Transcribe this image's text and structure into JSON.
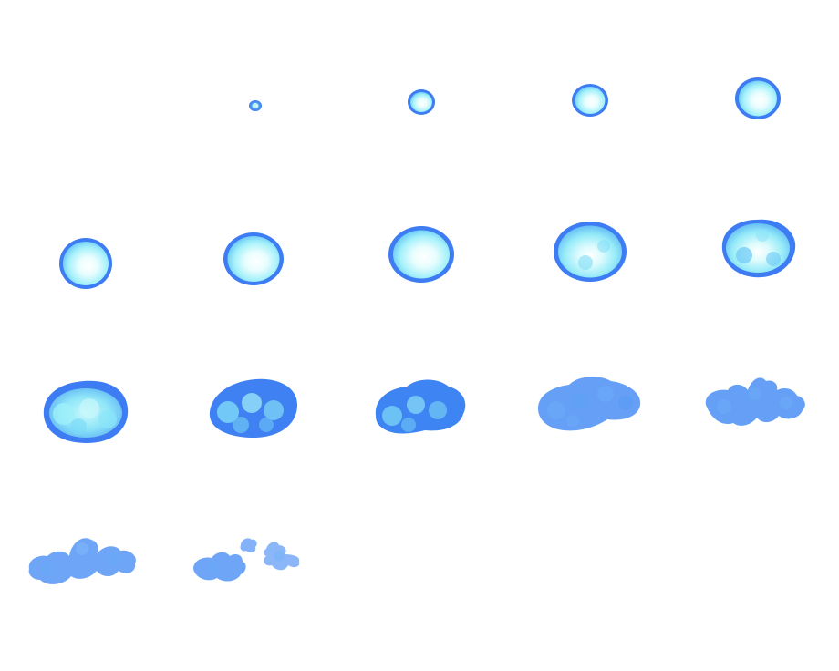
{
  "sprite_sheet": {
    "columns": 5,
    "rows": 4,
    "frame_count": 17,
    "palette": {
      "rim": "#3d7cf2",
      "body": "#5fb6f5",
      "glow": "#b8f6fb",
      "core": "#ffffff",
      "smoke": "#4a8ef5"
    },
    "frames": [
      {
        "index": 1,
        "phase": "empty"
      },
      {
        "index": 2,
        "phase": "grow"
      },
      {
        "index": 3,
        "phase": "grow"
      },
      {
        "index": 4,
        "phase": "grow"
      },
      {
        "index": 5,
        "phase": "grow"
      },
      {
        "index": 6,
        "phase": "grow"
      },
      {
        "index": 7,
        "phase": "grow"
      },
      {
        "index": 8,
        "phase": "grow"
      },
      {
        "index": 9,
        "phase": "grow"
      },
      {
        "index": 10,
        "phase": "grow"
      },
      {
        "index": 11,
        "phase": "break"
      },
      {
        "index": 12,
        "phase": "break"
      },
      {
        "index": 13,
        "phase": "break"
      },
      {
        "index": 14,
        "phase": "break"
      },
      {
        "index": 15,
        "phase": "break"
      },
      {
        "index": 16,
        "phase": "dissipate"
      },
      {
        "index": 17,
        "phase": "dissipate"
      }
    ]
  }
}
